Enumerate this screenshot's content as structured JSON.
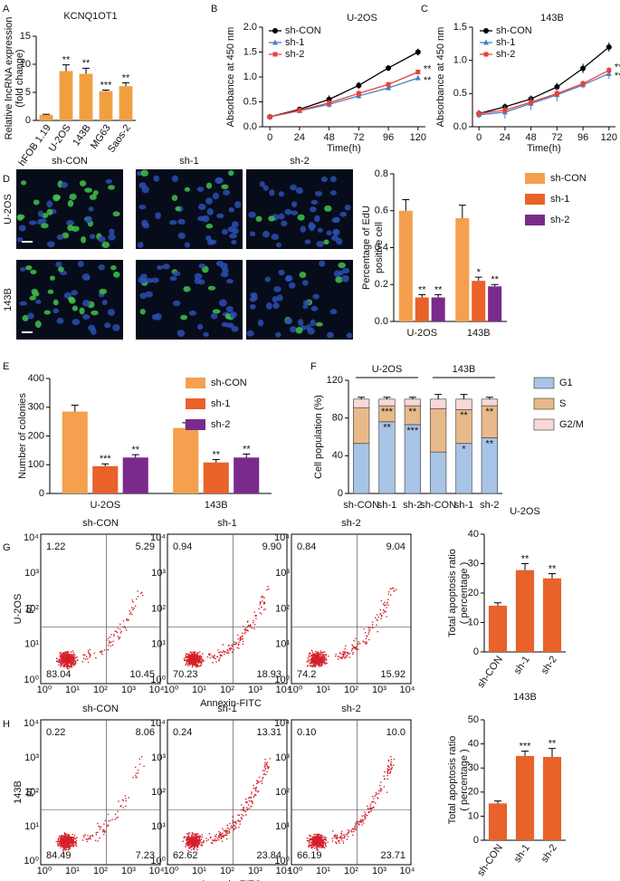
{
  "panel_labels": [
    "A",
    "B",
    "C",
    "D",
    "E",
    "F",
    "G",
    "H"
  ],
  "chart_data": [
    {
      "type": "bar",
      "title": "KCNQ1OT1",
      "ylabel": [
        "Relative lncRNA expression",
        "(fold change)"
      ],
      "categories": [
        "hFOB 1.19",
        "U-2OS",
        "143B",
        "MG63",
        "Saos-2"
      ],
      "values": [
        1,
        8.8,
        8.3,
        5.2,
        6.1
      ],
      "errors": [
        0.1,
        1.1,
        1.0,
        0.2,
        0.6
      ],
      "significance": [
        null,
        "**",
        "**",
        "***",
        "**"
      ],
      "color": "#f0a040",
      "ylim": [
        0,
        15
      ],
      "yticks": [
        0,
        5,
        10,
        15
      ]
    },
    {
      "type": "line",
      "title": "U-2OS",
      "xlabel": "Time(h)",
      "ylabel": "Absorbance at 450 nm",
      "x": [
        0,
        24,
        48,
        72,
        96,
        120
      ],
      "xlim": [
        -6,
        126
      ],
      "xticks": [
        0,
        24,
        48,
        72,
        96,
        120
      ],
      "ylim": [
        0,
        2
      ],
      "yticks": [
        {
          "value": 0,
          "label": "0.0"
        },
        0.5,
        {
          "value": 1,
          "label": "1.0"
        },
        1.5,
        {
          "value": 2,
          "label": "2.0"
        }
      ],
      "series": [
        {
          "name": "sh-CON",
          "color": "#000000",
          "marker": "circle",
          "values": [
            0.2,
            0.35,
            0.55,
            0.83,
            1.18,
            1.5
          ],
          "errors": [
            0.02,
            0.04,
            0.08,
            0.07,
            0.06,
            0.07
          ]
        },
        {
          "name": "sh-1",
          "color": "#4a7fc1",
          "marker": "triangle",
          "values": [
            0.2,
            0.32,
            0.45,
            0.62,
            0.78,
            0.98
          ],
          "errors": [
            0.02,
            0.04,
            0.06,
            0.06,
            0.05,
            0.04
          ],
          "significance": "**"
        },
        {
          "name": "sh-2",
          "color": "#e8413c",
          "marker": "square",
          "values": [
            0.2,
            0.33,
            0.48,
            0.67,
            0.85,
            1.1
          ],
          "errors": [
            0.02,
            0.04,
            0.06,
            0.06,
            0.05,
            0.04
          ],
          "significance": "**"
        }
      ]
    },
    {
      "type": "line",
      "title": "143B",
      "xlabel": "Time(h)",
      "ylabel": "Absorbance at 450 nm",
      "x": [
        0,
        24,
        48,
        72,
        96,
        120
      ],
      "xlim": [
        -6,
        126
      ],
      "xticks": [
        0,
        24,
        48,
        72,
        96,
        120
      ],
      "ylim": [
        0,
        1.5
      ],
      "yticks": [
        {
          "value": 0,
          "label": "0.0"
        },
        0.5,
        {
          "value": 1,
          "label": "1.0"
        },
        1.5
      ],
      "series": [
        {
          "name": "sh-CON",
          "color": "#000000",
          "marker": "circle",
          "values": [
            0.2,
            0.3,
            0.42,
            0.6,
            0.88,
            1.2
          ],
          "errors": [
            0.05,
            0.05,
            0.05,
            0.06,
            0.07,
            0.07
          ]
        },
        {
          "name": "sh-1",
          "color": "#4a7fc1",
          "marker": "triangle",
          "values": [
            0.18,
            0.22,
            0.35,
            0.48,
            0.63,
            0.8
          ],
          "errors": [
            0.05,
            0.1,
            0.1,
            0.1,
            0.05,
            0.08
          ],
          "significance": "**"
        },
        {
          "name": "sh-2",
          "color": "#e8413c",
          "marker": "square",
          "values": [
            0.2,
            0.25,
            0.37,
            0.5,
            0.65,
            0.85
          ],
          "errors": [
            0.05,
            0.05,
            0.05,
            0.06,
            0.05,
            0.05
          ],
          "significance": "**"
        }
      ]
    },
    {
      "type": "bar",
      "ylabel": [
        "Percentage of EdU",
        "positive cell"
      ],
      "categories": [
        "U-2OS",
        "143B"
      ],
      "ylim": [
        0,
        0.8
      ],
      "yticks": [
        {
          "value": 0,
          "label": "0.0"
        },
        0.2,
        0.4,
        0.6,
        0.8
      ],
      "series": [
        {
          "name": "sh-CON",
          "color": "#f4a04e",
          "values": [
            0.6,
            0.56
          ],
          "errors": [
            0.06,
            0.07
          ]
        },
        {
          "name": "sh-1",
          "color": "#e8622a",
          "values": [
            0.13,
            0.22
          ],
          "errors": [
            0.015,
            0.02
          ],
          "significance": [
            "**",
            "*"
          ]
        },
        {
          "name": "sh-2",
          "color": "#7a2a8c",
          "values": [
            0.13,
            0.19
          ],
          "errors": [
            0.015,
            0.01
          ],
          "significance": [
            "**",
            "**"
          ]
        }
      ]
    },
    {
      "type": "bar",
      "ylabel": "Number of colonies",
      "categories": [
        "U-2OS",
        "143B"
      ],
      "ylim": [
        0,
        400
      ],
      "yticks": [
        0,
        100,
        200,
        300,
        400
      ],
      "series": [
        {
          "name": "sh-CON",
          "color": "#f4a04e",
          "values": [
            285,
            228
          ],
          "errors": [
            22,
            18
          ]
        },
        {
          "name": "sh-1",
          "color": "#e8622a",
          "values": [
            95,
            108
          ],
          "errors": [
            8,
            10
          ],
          "significance": [
            "***",
            "**"
          ]
        },
        {
          "name": "sh-2",
          "color": "#7a2a8c",
          "values": [
            125,
            125
          ],
          "errors": [
            10,
            12
          ],
          "significance": [
            "**",
            "**"
          ]
        }
      ]
    },
    {
      "type": "stacked_bar",
      "ylabel": "Cell population (%)",
      "categories": [
        "sh-CON",
        "sh-1",
        "sh-2",
        "sh-CON",
        "sh-1",
        "sh-2"
      ],
      "groups": [
        "U-2OS",
        "143B"
      ],
      "ylim": [
        0,
        120
      ],
      "yticks": [
        0,
        40,
        80,
        120
      ],
      "series": [
        {
          "name": "G1",
          "color": "#a8c4e6",
          "values": [
            53,
            76,
            73,
            44,
            53,
            59
          ],
          "errors": [
            2,
            3,
            2,
            3,
            3,
            2
          ],
          "significance": [
            null,
            "**",
            "***",
            null,
            "*",
            "**"
          ]
        },
        {
          "name": "S",
          "color": "#e8b98a",
          "values": [
            38,
            17,
            20,
            46,
            36,
            34
          ],
          "errors": [
            2,
            2,
            2,
            2,
            2,
            2
          ],
          "significance": [
            null,
            "***",
            "**",
            null,
            "**",
            "**"
          ]
        },
        {
          "name": "G2/M",
          "color": "#f8d8d8",
          "values": [
            9,
            7,
            7,
            10,
            11,
            7
          ],
          "errors": [
            2,
            2,
            2,
            5,
            5,
            2
          ]
        }
      ]
    },
    {
      "type": "bar",
      "title": "U-2OS",
      "ylabel": [
        "Total apoptosis ratio",
        "( percentage )"
      ],
      "categories": [
        "sh-CON",
        "sh-1",
        "sh-2"
      ],
      "values": [
        15.7,
        27.8,
        25
      ],
      "errors": [
        1,
        2.2,
        1.6
      ],
      "significance": [
        null,
        "**",
        "**"
      ],
      "color": "#e8622a",
      "ylim": [
        0,
        40
      ],
      "yticks": [
        0,
        10,
        20,
        30,
        40
      ]
    },
    {
      "type": "bar",
      "title": "143B",
      "ylabel": [
        "Total apoptosis ratio",
        "( percentage )"
      ],
      "categories": [
        "sh-CON",
        "sh-1",
        "sh-2"
      ],
      "values": [
        15.3,
        35,
        34.6
      ],
      "errors": [
        1,
        2,
        3.5
      ],
      "significance": [
        null,
        "***",
        "**"
      ],
      "color": "#e8622a",
      "ylim": [
        0,
        50
      ],
      "yticks": [
        0,
        10,
        20,
        30,
        40,
        50
      ]
    }
  ],
  "micro": {
    "columns": [
      "sh-CON",
      "sh-1",
      "sh-2"
    ],
    "rows": [
      "U-2OS",
      "143B"
    ]
  },
  "flow": {
    "xlabel": "Annexin-FITC",
    "ticks": [
      "10⁰",
      "10¹",
      "10²",
      "10³",
      "10⁴"
    ],
    "rows": [
      {
        "label": "U-2OS",
        "axis": "PI",
        "plots": [
          {
            "title": "sh-CON",
            "quadrants": [
              "1.22",
              "5.29",
              "83.04",
              "10.45"
            ]
          },
          {
            "title": "sh-1",
            "quadrants": [
              "0.94",
              "9.90",
              "70.23",
              "18.93"
            ]
          },
          {
            "title": "sh-2",
            "quadrants": [
              "0.84",
              "9.04",
              "74.2",
              "15.92"
            ]
          }
        ]
      },
      {
        "label": "143B",
        "axis": "PI",
        "plots": [
          {
            "title": "sh-CON",
            "quadrants": [
              "0.22",
              "8.06",
              "84.49",
              "7.23"
            ]
          },
          {
            "title": "sh-1",
            "quadrants": [
              "0.24",
              "13.31",
              "62.62",
              "23.84"
            ]
          },
          {
            "title": "sh-2",
            "quadrants": [
              "0.10",
              "10.0",
              "66.19",
              "23.71"
            ]
          }
        ]
      }
    ]
  }
}
